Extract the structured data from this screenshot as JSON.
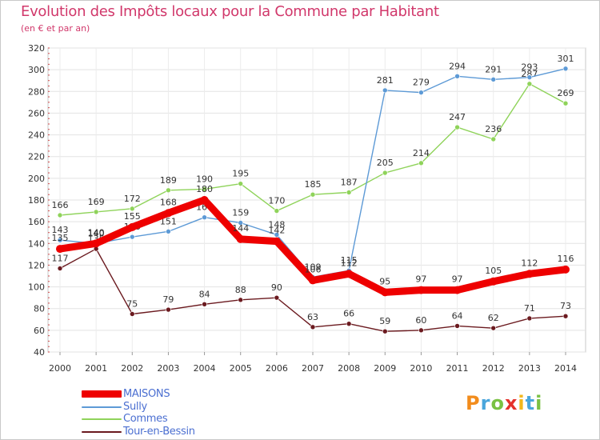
{
  "title": "Evolution des Impôts locaux pour la Commune par Habitant",
  "subtitle": "(en € et par an)",
  "logo": {
    "letters": [
      "P",
      "r",
      "o",
      "x",
      "i",
      "t",
      "i"
    ],
    "colors": [
      "#f28c1c",
      "#4aa6dc",
      "#7ac143",
      "#e4312b",
      "#f2b71c",
      "#4aa6dc",
      "#7ac143"
    ]
  },
  "chart_data": {
    "type": "line",
    "title": "Evolution des Impôts locaux pour la Commune par Habitant",
    "subtitle": "(en € et par an)",
    "xlabel": "",
    "ylabel": "",
    "x": [
      "2000",
      "2001",
      "2002",
      "2003",
      "2004",
      "2005",
      "2006",
      "2007",
      "2008",
      "2009",
      "2010",
      "2011",
      "2012",
      "2013",
      "2014"
    ],
    "ylim": [
      40,
      320
    ],
    "yticks": [
      40,
      60,
      80,
      100,
      120,
      140,
      160,
      180,
      200,
      220,
      240,
      260,
      280,
      300,
      320
    ],
    "grid": true,
    "legend_position": "bottom-left",
    "series": [
      {
        "name": "Tour-en-Bessin",
        "color": "#6b1a1f",
        "emphasis": false,
        "values": [
          117,
          135,
          75,
          79,
          84,
          88,
          90,
          63,
          66,
          59,
          60,
          64,
          62,
          71,
          73
        ]
      },
      {
        "name": "Commes",
        "color": "#8fd35a",
        "emphasis": false,
        "values": [
          166,
          169,
          172,
          189,
          190,
          195,
          170,
          185,
          187,
          205,
          214,
          247,
          236,
          287,
          269
        ]
      },
      {
        "name": "Sully",
        "color": "#5d9ad6",
        "emphasis": false,
        "values": [
          143,
          140,
          146,
          151,
          164,
          159,
          148,
          109,
          115,
          281,
          279,
          294,
          291,
          293,
          301
        ]
      },
      {
        "name": "MAISONS",
        "color": "#ee0000",
        "emphasis": true,
        "values": [
          135,
          140,
          155,
          168,
          180,
          144,
          142,
          106,
          112,
          95,
          97,
          97,
          105,
          112,
          116
        ]
      }
    ]
  },
  "legend": {
    "items": [
      {
        "label": "MAISONS",
        "color": "#ee0000",
        "text_color": "#4b6fd1",
        "weight": 9
      },
      {
        "label": "Sully",
        "color": "#5d9ad6",
        "text_color": "#4b6fd1",
        "weight": 2
      },
      {
        "label": "Commes",
        "color": "#8fd35a",
        "text_color": "#4b6fd1",
        "weight": 2
      },
      {
        "label": "Tour-en-Bessin",
        "color": "#6b1a1f",
        "text_color": "#4b6fd1",
        "weight": 2
      }
    ]
  }
}
